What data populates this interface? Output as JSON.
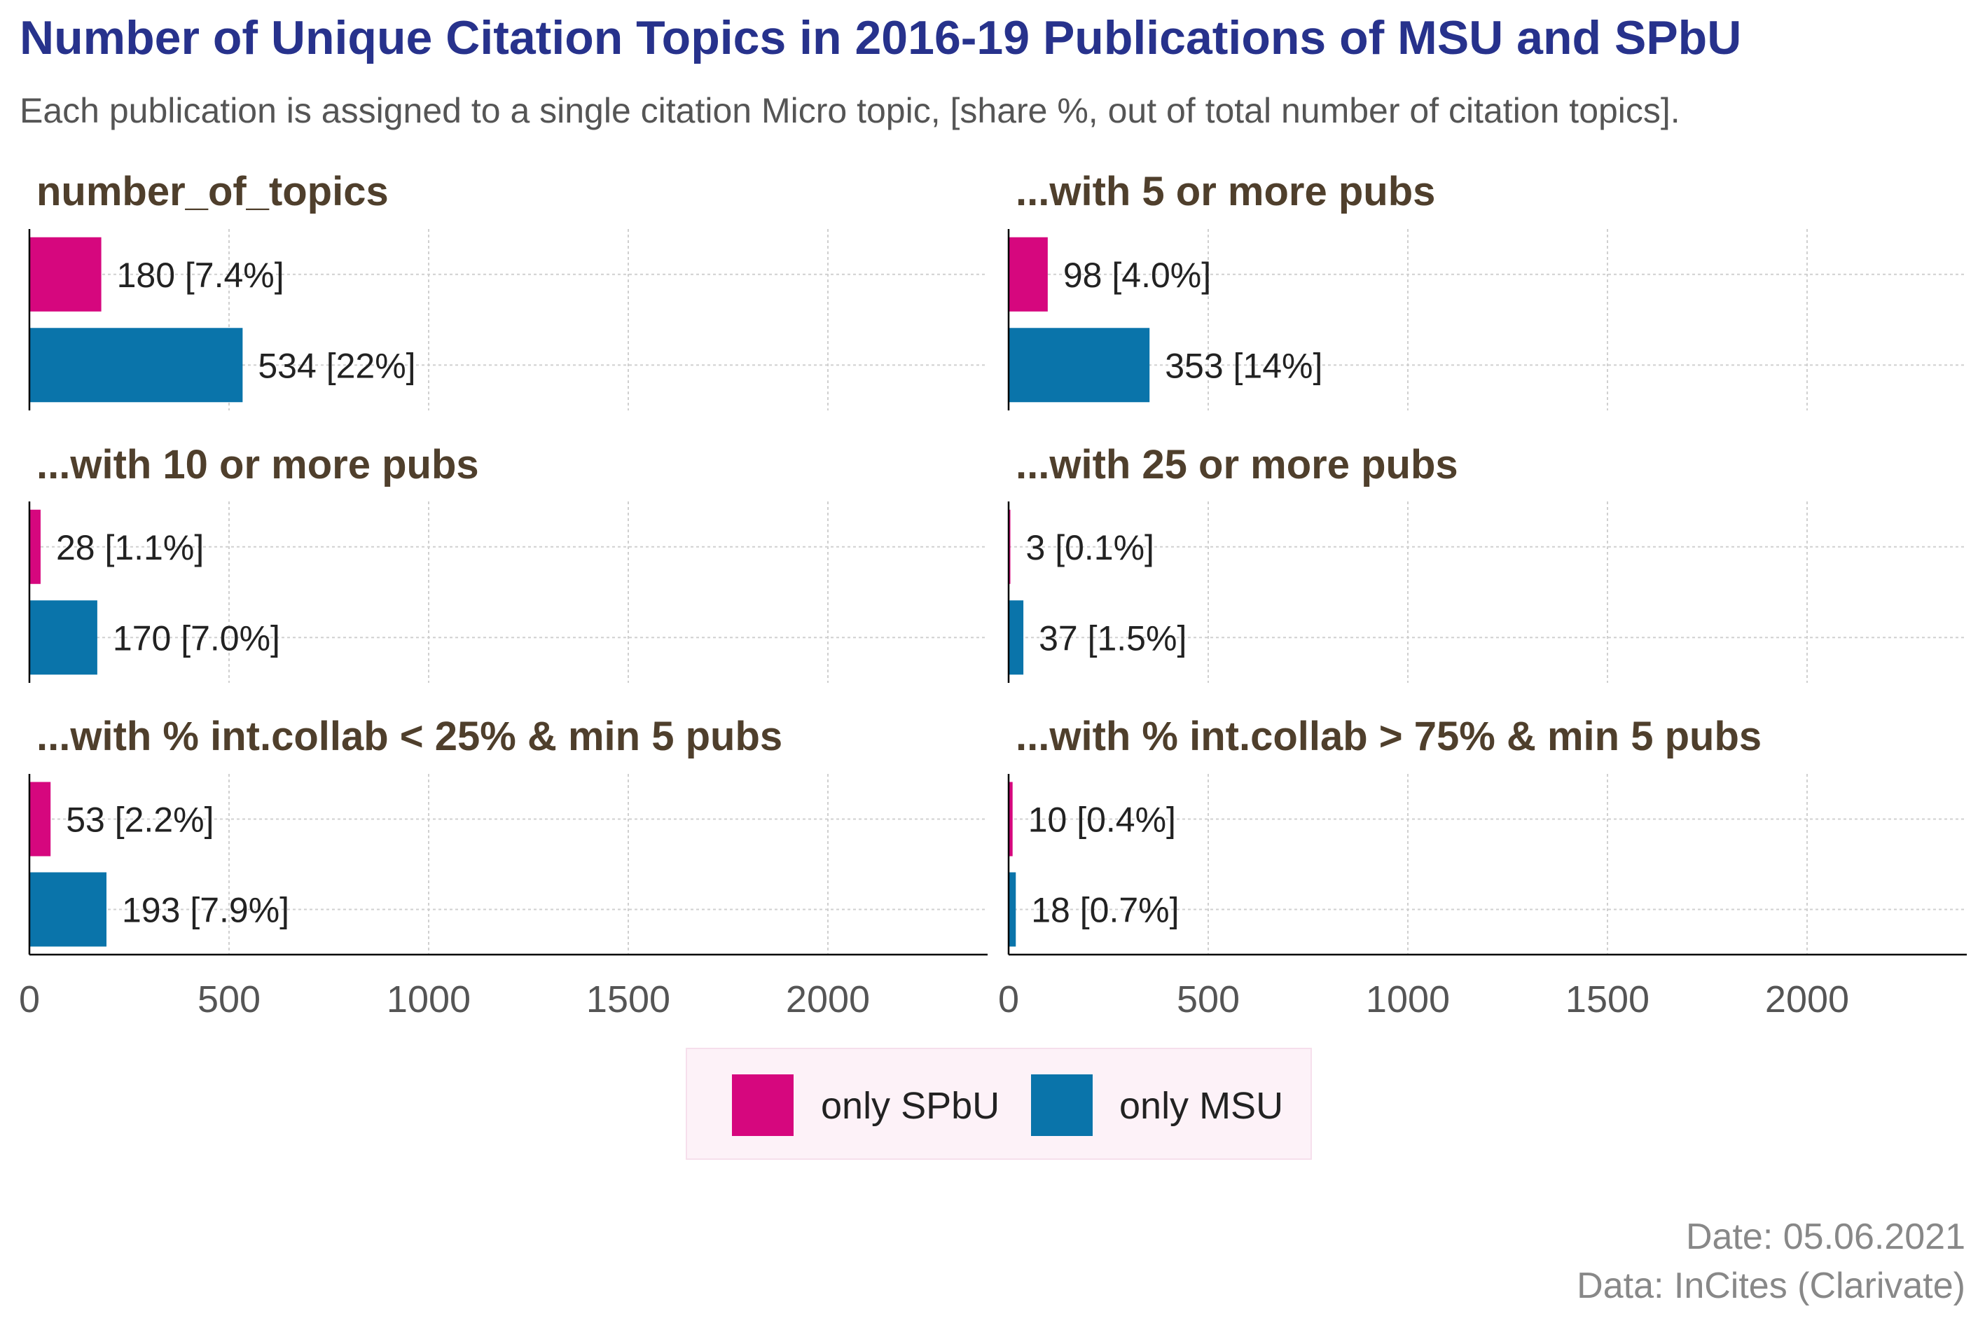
{
  "title": "Number of Unique Citation Topics in 2016-19 Publications of MSU and SPbU",
  "subtitle": "Each publication is assigned to a single citation Micro topic, [share %, out of total number of citation topics].",
  "caption": {
    "date": "Date: 05.06.2021",
    "source": "Data: InCites (Clarivate)"
  },
  "colors": {
    "spbu": "#d6077e",
    "msu": "#0a74aa",
    "title": "#27328c",
    "facet_title": "#4f3f2c",
    "legend_bg": "#fdf2f8"
  },
  "legend": [
    {
      "label": "only SPbU",
      "color": "#d6077e"
    },
    {
      "label": "only MSU",
      "color": "#0a74aa"
    }
  ],
  "chart_data": {
    "type": "bar",
    "orientation": "horizontal",
    "xlim": [
      0,
      2400
    ],
    "xticks": [
      0,
      500,
      1000,
      1500,
      2000
    ],
    "grid": true,
    "legend_position": "bottom",
    "series_names": [
      "only SPbU",
      "only MSU"
    ],
    "facets": [
      {
        "title": "number_of_topics",
        "bars": [
          {
            "series": "only SPbU",
            "value": 180,
            "label": "180 [7.4%]"
          },
          {
            "series": "only MSU",
            "value": 534,
            "label": "534 [22%]"
          }
        ]
      },
      {
        "title": "...with 5 or more pubs",
        "bars": [
          {
            "series": "only SPbU",
            "value": 98,
            "label": "98 [4.0%]"
          },
          {
            "series": "only MSU",
            "value": 353,
            "label": "353 [14%]"
          }
        ]
      },
      {
        "title": "...with 10 or more pubs",
        "bars": [
          {
            "series": "only SPbU",
            "value": 28,
            "label": "28 [1.1%]"
          },
          {
            "series": "only MSU",
            "value": 170,
            "label": "170 [7.0%]"
          }
        ]
      },
      {
        "title": "...with 25 or more pubs",
        "bars": [
          {
            "series": "only SPbU",
            "value": 3,
            "label": "3 [0.1%]"
          },
          {
            "series": "only MSU",
            "value": 37,
            "label": "37 [1.5%]"
          }
        ]
      },
      {
        "title": "...with % int.collab < 25% & min 5 pubs",
        "bars": [
          {
            "series": "only SPbU",
            "value": 53,
            "label": "53 [2.2%]"
          },
          {
            "series": "only MSU",
            "value": 193,
            "label": "193 [7.9%]"
          }
        ]
      },
      {
        "title": "...with % int.collab > 75% & min 5 pubs",
        "bars": [
          {
            "series": "only SPbU",
            "value": 10,
            "label": "10 [0.4%]"
          },
          {
            "series": "only MSU",
            "value": 18,
            "label": "18 [0.7%]"
          }
        ]
      }
    ]
  }
}
